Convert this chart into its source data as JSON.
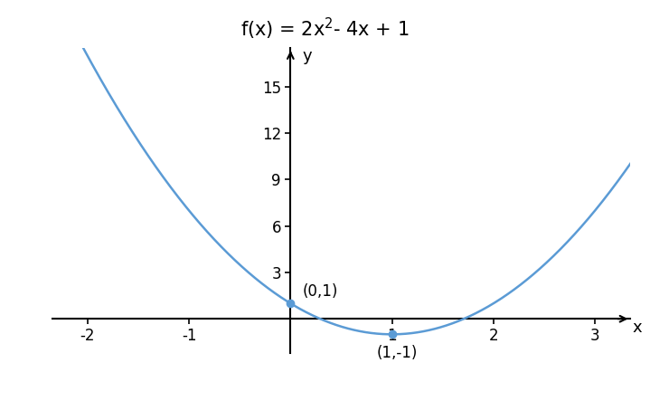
{
  "title_plain": "f(x) = 2x",
  "title_sup": "2",
  "title_rest": "- 4x + 1",
  "curve_color": "#5b9bd5",
  "point_color": "#5b9bd5",
  "x_plot_min": -2.35,
  "x_plot_max": 3.35,
  "y_plot_min": -2.2,
  "y_plot_max": 17.5,
  "x_ticks": [
    -2,
    -1,
    1,
    2,
    3
  ],
  "y_ticks": [
    3,
    6,
    9,
    12,
    15
  ],
  "point1": [
    0,
    1
  ],
  "point1_label": "(0,1)",
  "point2": [
    1,
    -1
  ],
  "point2_label": "(1,-1)",
  "x_label": "x",
  "y_label": "y",
  "background_color": "#ffffff",
  "curve_linewidth": 1.8,
  "axis_linewidth": 1.5,
  "fontsize_ticks": 12,
  "fontsize_title": 15,
  "fontsize_labels": 13,
  "arrow_mutation_scale": 12
}
